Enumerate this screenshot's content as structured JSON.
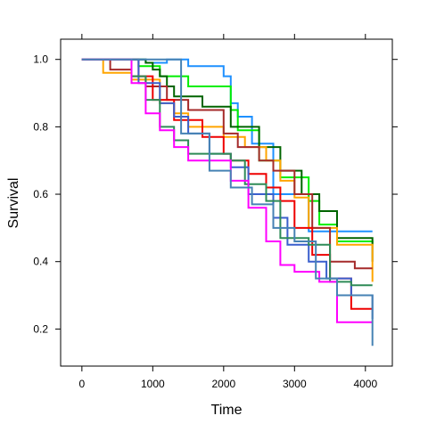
{
  "chart_data": {
    "type": "line",
    "step": true,
    "xlabel": "Time",
    "ylabel": "Survival",
    "xlim": [
      -300,
      4380
    ],
    "ylim": [
      0.09,
      1.06
    ],
    "xticks": [
      0,
      1000,
      2000,
      3000,
      4000
    ],
    "yticks": [
      0.2,
      0.4,
      0.6,
      0.8,
      1.0
    ],
    "xtick_labels": [
      "0",
      "1000",
      "2000",
      "3000",
      "4000"
    ],
    "ytick_labels": [
      "0.2",
      "0.4",
      "0.6",
      "0.8",
      "1.0"
    ],
    "grid": false,
    "series": [
      {
        "color": "#1e90ff",
        "x": [
          0,
          900,
          1200,
          1500,
          2000,
          2100,
          2200,
          2400,
          2700,
          3200,
          3400,
          3800,
          4100
        ],
        "y": [
          1.0,
          0.99,
          1.0,
          0.98,
          0.95,
          0.87,
          0.83,
          0.75,
          0.6,
          0.49,
          0.49,
          0.49,
          0.49
        ]
      },
      {
        "color": "#00ee00",
        "x": [
          0,
          800,
          1100,
          1500,
          2100,
          2200,
          2500,
          2800,
          3200,
          3350,
          3600,
          4100
        ],
        "y": [
          1.0,
          0.98,
          0.95,
          0.92,
          0.85,
          0.79,
          0.7,
          0.65,
          0.58,
          0.51,
          0.46,
          0.45
        ]
      },
      {
        "color": "#006400",
        "x": [
          0,
          900,
          1000,
          1100,
          1200,
          1300,
          1700,
          2100,
          2500,
          2800,
          3100,
          3350,
          3600,
          4100
        ],
        "y": [
          1.0,
          0.99,
          0.97,
          0.95,
          0.92,
          0.89,
          0.86,
          0.8,
          0.74,
          0.67,
          0.6,
          0.55,
          0.47,
          0.4
        ]
      },
      {
        "color": "#ffa500",
        "x": [
          0,
          300,
          700,
          1100,
          1300,
          1500,
          2000,
          2300,
          2600,
          2800,
          3000,
          3200,
          3600,
          4100
        ],
        "y": [
          1.0,
          0.96,
          0.94,
          0.87,
          0.84,
          0.8,
          0.77,
          0.74,
          0.7,
          0.64,
          0.59,
          0.5,
          0.45,
          0.34
        ]
      },
      {
        "color": "#a52a2a",
        "x": [
          0,
          400,
          700,
          900,
          1200,
          1500,
          2000,
          2200,
          2500,
          2700,
          3000,
          3250,
          3500,
          3850,
          4100
        ],
        "y": [
          1.0,
          0.97,
          0.95,
          0.92,
          0.88,
          0.85,
          0.78,
          0.74,
          0.7,
          0.67,
          0.6,
          0.5,
          0.4,
          0.38,
          0.38
        ]
      },
      {
        "color": "#ee0000",
        "x": [
          0,
          800,
          1000,
          1300,
          1700,
          2000,
          2100,
          2350,
          2600,
          2800,
          3000,
          3250,
          3500,
          3800,
          4100
        ],
        "y": [
          1.0,
          0.95,
          0.88,
          0.82,
          0.77,
          0.72,
          0.7,
          0.66,
          0.62,
          0.58,
          0.5,
          0.42,
          0.35,
          0.26,
          0.26
        ]
      },
      {
        "color": "#3a5fcd",
        "x": [
          0,
          800,
          1100,
          1300,
          1500,
          1800,
          2100,
          2350,
          2700,
          2900,
          3200,
          3450,
          3800,
          4100
        ],
        "y": [
          1.0,
          0.93,
          0.87,
          0.83,
          0.78,
          0.72,
          0.68,
          0.6,
          0.53,
          0.45,
          0.4,
          0.35,
          0.3,
          0.23
        ]
      },
      {
        "color": "#2e8b57",
        "x": [
          0,
          700,
          900,
          1100,
          1300,
          1500,
          2100,
          2300,
          2600,
          2800,
          3200,
          3500,
          3800,
          4100
        ],
        "y": [
          1.0,
          0.95,
          0.88,
          0.8,
          0.76,
          0.72,
          0.7,
          0.63,
          0.58,
          0.47,
          0.45,
          0.34,
          0.33,
          0.33
        ]
      },
      {
        "color": "#ff00ff",
        "x": [
          0,
          700,
          900,
          1100,
          1300,
          1500,
          2100,
          2350,
          2600,
          2800,
          3000,
          3350,
          3600,
          4100
        ],
        "y": [
          1.0,
          0.93,
          0.84,
          0.79,
          0.74,
          0.7,
          0.64,
          0.56,
          0.46,
          0.39,
          0.37,
          0.34,
          0.22,
          0.22
        ]
      },
      {
        "color": "#4682b4",
        "x": [
          0,
          1400,
          1800,
          2100,
          2400,
          2700,
          3000,
          3300,
          3600,
          4100
        ],
        "y": [
          1.0,
          0.78,
          0.67,
          0.62,
          0.57,
          0.5,
          0.46,
          0.35,
          0.3,
          0.15
        ]
      }
    ]
  }
}
